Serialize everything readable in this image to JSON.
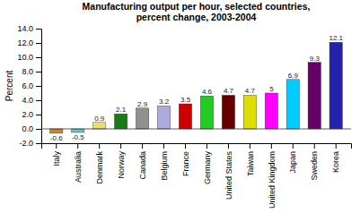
{
  "chart_data": {
    "type": "bar",
    "title": "Manufacturing output per hour, selected countries,\npercent change, 2003-2004",
    "ylabel": "Percent",
    "categories": [
      "Italy",
      "Australia",
      "Denmark",
      "Norway",
      "Canada",
      "Belgium",
      "France",
      "Germany",
      "United States",
      "Taiwan",
      "United Kingdom",
      "Japan",
      "Sweden",
      "Korea"
    ],
    "values": [
      -0.6,
      -0.5,
      0.9,
      2.1,
      2.9,
      3.2,
      3.5,
      4.6,
      4.7,
      4.7,
      5.0,
      6.9,
      9.3,
      12.1
    ],
    "colors": [
      "#d4812a",
      "#5bc8c8",
      "#e8e070",
      "#1a7a1a",
      "#909090",
      "#aaaadd",
      "#cc0000",
      "#22cc22",
      "#660000",
      "#dddd00",
      "#ff00ff",
      "#00ccff",
      "#660066",
      "#2222aa"
    ],
    "ylim": [
      -2.0,
      14.0
    ],
    "yticks": [
      {
        "value": -2.0,
        "label": "-2.0"
      },
      {
        "value": 0.0,
        "label": "0.0"
      },
      {
        "value": 2.0,
        "label": "2.0"
      },
      {
        "value": 4.0,
        "label": "4.0"
      },
      {
        "value": 6.0,
        "label": "6.0"
      },
      {
        "value": 8.0,
        "label": "8.0"
      },
      {
        "value": 10.0,
        "label": "10.0"
      },
      {
        "value": 12.0,
        "label": "12.0"
      },
      {
        "value": 14.0,
        "label": "14.0"
      }
    ],
    "grid": false,
    "data_labels": true
  }
}
